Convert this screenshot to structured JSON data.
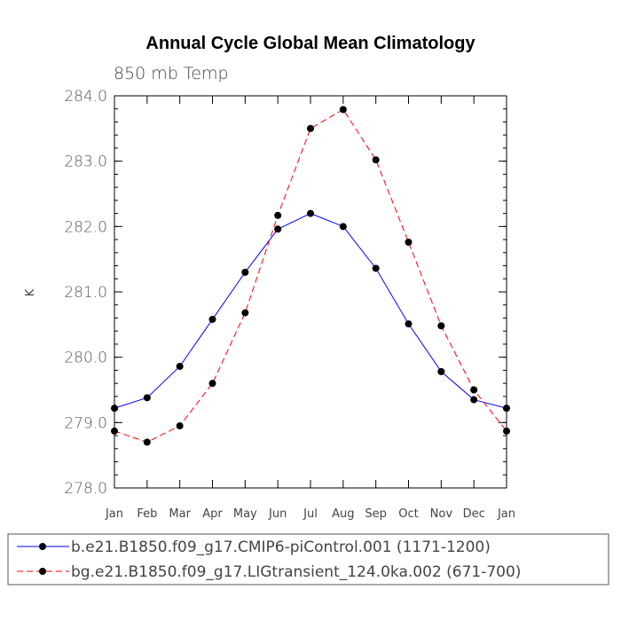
{
  "chart_data": {
    "type": "line",
    "title": "Annual Cycle Global Mean Climatology",
    "subtitle": "850 mb Temp",
    "ylabel": "K",
    "xlabel": "",
    "categories": [
      "Jan",
      "Feb",
      "Mar",
      "Apr",
      "May",
      "Jun",
      "Jul",
      "Aug",
      "Sep",
      "Oct",
      "Nov",
      "Dec",
      "Jan"
    ],
    "ylim": [
      278.0,
      284.0
    ],
    "yticks": [
      "278.0",
      "279.0",
      "280.0",
      "281.0",
      "282.0",
      "283.0",
      "284.0"
    ],
    "grid": false,
    "legend_position": "bottom",
    "series": [
      {
        "name": "b.e21.B1850.f09_g17.CMIP6-piControl.001 (1171-1200)",
        "color": "#0000ff",
        "line_style": "solid",
        "marker": "filled-circle",
        "values": [
          279.22,
          279.38,
          279.86,
          280.58,
          281.3,
          281.96,
          282.2,
          282.0,
          281.36,
          280.51,
          279.78,
          279.35,
          279.22
        ]
      },
      {
        "name": "bg.e21.B1850.f09_g17.LIGtransient_124.0ka.002 (671-700)",
        "color": "#ff0000",
        "line_style": "dashed",
        "marker": "filled-circle",
        "values": [
          278.87,
          278.7,
          278.95,
          279.6,
          280.68,
          282.17,
          283.5,
          283.79,
          283.02,
          281.76,
          280.48,
          279.5,
          278.87
        ]
      }
    ]
  }
}
